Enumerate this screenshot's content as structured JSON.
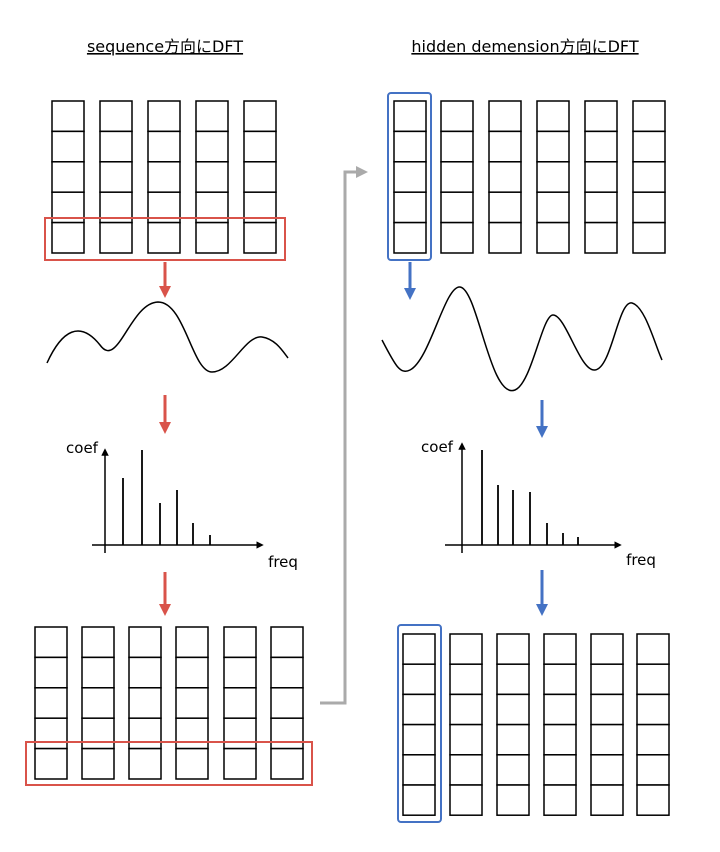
{
  "left": {
    "title": "sequence方向にDFT",
    "y_axis_label": "coef",
    "x_axis_label": "freq"
  },
  "right": {
    "title": "hidden demension方向にDFT",
    "y_axis_label": "coef",
    "x_axis_label": "freq"
  }
}
